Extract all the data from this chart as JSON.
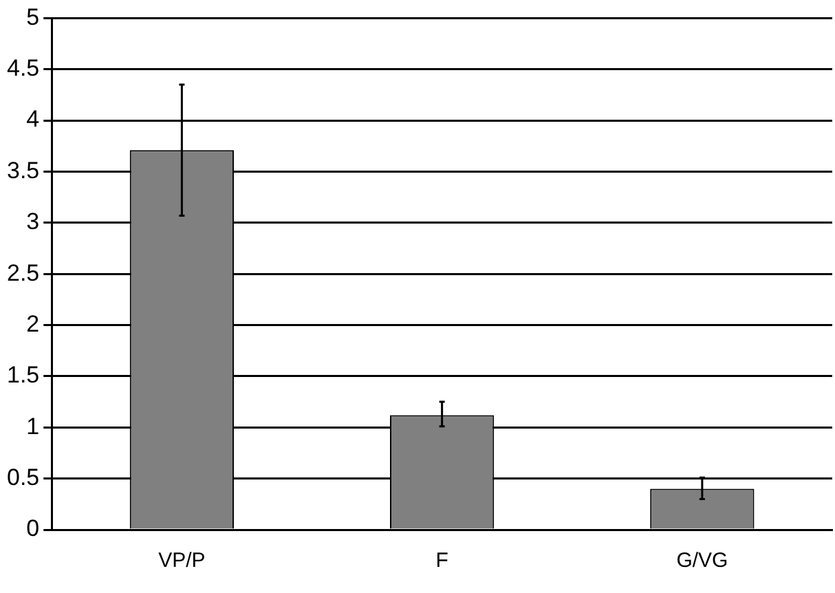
{
  "chart_data": {
    "type": "bar",
    "categories": [
      "VP/P",
      "F",
      "G/VG"
    ],
    "values": [
      3.71,
      1.12,
      0.4
    ],
    "color": "#808080",
    "errors": [
      [
        3.07,
        4.35
      ],
      [
        1.01,
        1.25
      ],
      [
        0.3,
        0.51
      ]
    ],
    "ylim": [
      0,
      5
    ],
    "yticks": [
      0,
      0.5,
      1,
      1.5,
      2,
      2.5,
      3,
      3.5,
      4,
      4.5,
      5
    ],
    "grid": "y",
    "legend": false
  }
}
